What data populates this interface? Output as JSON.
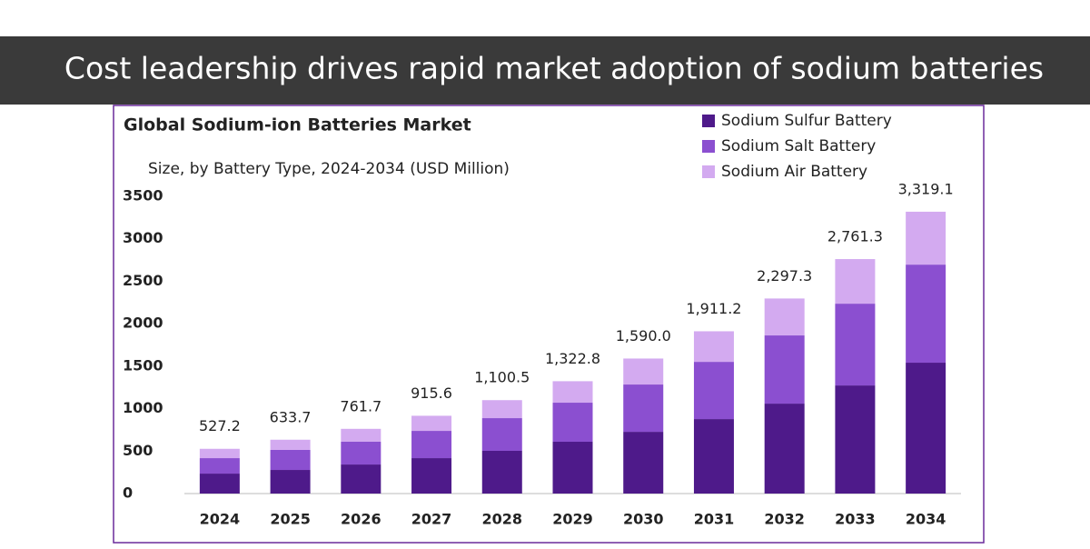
{
  "banner": {
    "title": "Cost leadership drives rapid market adoption of sodium batteries"
  },
  "chart_data": {
    "type": "stacked-bar",
    "title": "Global Sodium-ion Batteries Market",
    "subtitle": "Size, by Battery Type, 2024-2034 (USD Million)",
    "categories": [
      "2024",
      "2025",
      "2026",
      "2027",
      "2028",
      "2029",
      "2030",
      "2031",
      "2032",
      "2033",
      "2034"
    ],
    "series": [
      {
        "name": "Sodium Sulfur Battery",
        "color": "#4e1a8a",
        "values": [
          235,
          278,
          342,
          417,
          503,
          610,
          727,
          877,
          1059,
          1273,
          1541
        ]
      },
      {
        "name": "Sodium Salt Battery",
        "color": "#8b4fd0",
        "values": [
          182,
          236,
          268,
          321,
          385,
          460,
          557,
          674,
          803,
          963,
          1155
        ]
      },
      {
        "name": "Sodium Air Battery",
        "color": "#d3aaf0",
        "values": [
          110,
          120,
          152,
          178,
          212,
          253,
          306,
          360,
          435,
          525,
          623
        ]
      }
    ],
    "totals": {
      "values": [
        527.2,
        633.7,
        761.7,
        915.6,
        1100.5,
        1322.8,
        1590.0,
        1911.2,
        2297.3,
        2761.3,
        3319.1
      ],
      "value_labels": [
        "527.2",
        "633.7",
        "761.7",
        "915.6",
        "1,100.5",
        "1,322.8",
        "1,590.0",
        "1,911.2",
        "2,297.3",
        "2,761.3",
        "3,319.1"
      ]
    },
    "ylim": [
      0,
      3500
    ],
    "yticks": [
      0,
      500,
      1000,
      1500,
      2000,
      2500,
      3000,
      3500
    ],
    "grid": false,
    "legend": "top-right"
  }
}
